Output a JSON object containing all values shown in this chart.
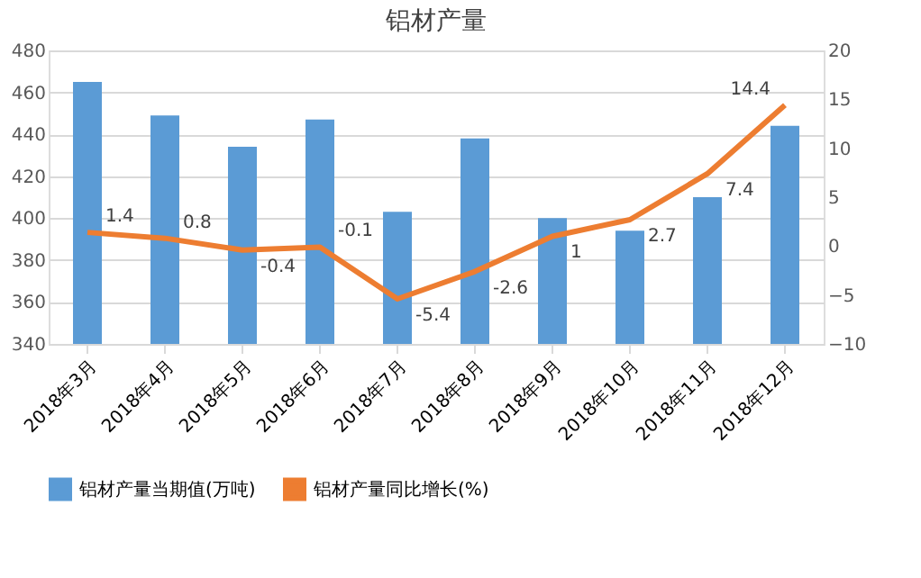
{
  "chart_data": {
    "type": "bar",
    "title": "铝材产量",
    "categories": [
      "2018年3月",
      "2018年4月",
      "2018年5月",
      "2018年6月",
      "2018年7月",
      "2018年8月",
      "2018年9月",
      "2018年10月",
      "2018年11月",
      "2018年12月"
    ],
    "series": [
      {
        "name": "铝材产量当期值(万吨)",
        "color": "#5b9bd5",
        "values": [
          465,
          449,
          434,
          447,
          403,
          438,
          400,
          394,
          410,
          444
        ]
      },
      {
        "name": "铝材产量同比增长(%)",
        "type": "line",
        "axis": "y2",
        "color": "#ed7d31",
        "values": [
          1.4,
          0.8,
          -0.4,
          -0.1,
          -5.4,
          -2.6,
          1,
          2.7,
          7.4,
          14.4
        ],
        "value_labels": [
          "1.4",
          "0.8",
          "-0.4",
          "-0.1",
          "-5.4",
          "-2.6",
          "1",
          "2.7",
          "7.4",
          "14.4"
        ]
      }
    ],
    "ylim": [
      340,
      480
    ],
    "yticks": [
      340,
      360,
      380,
      400,
      420,
      440,
      460,
      480
    ],
    "y2lim": [
      -10,
      20
    ],
    "y2ticks": [
      -10,
      -5,
      0,
      5,
      10,
      15,
      20
    ],
    "grid": "y",
    "legend": "bottom",
    "marker": "none"
  }
}
